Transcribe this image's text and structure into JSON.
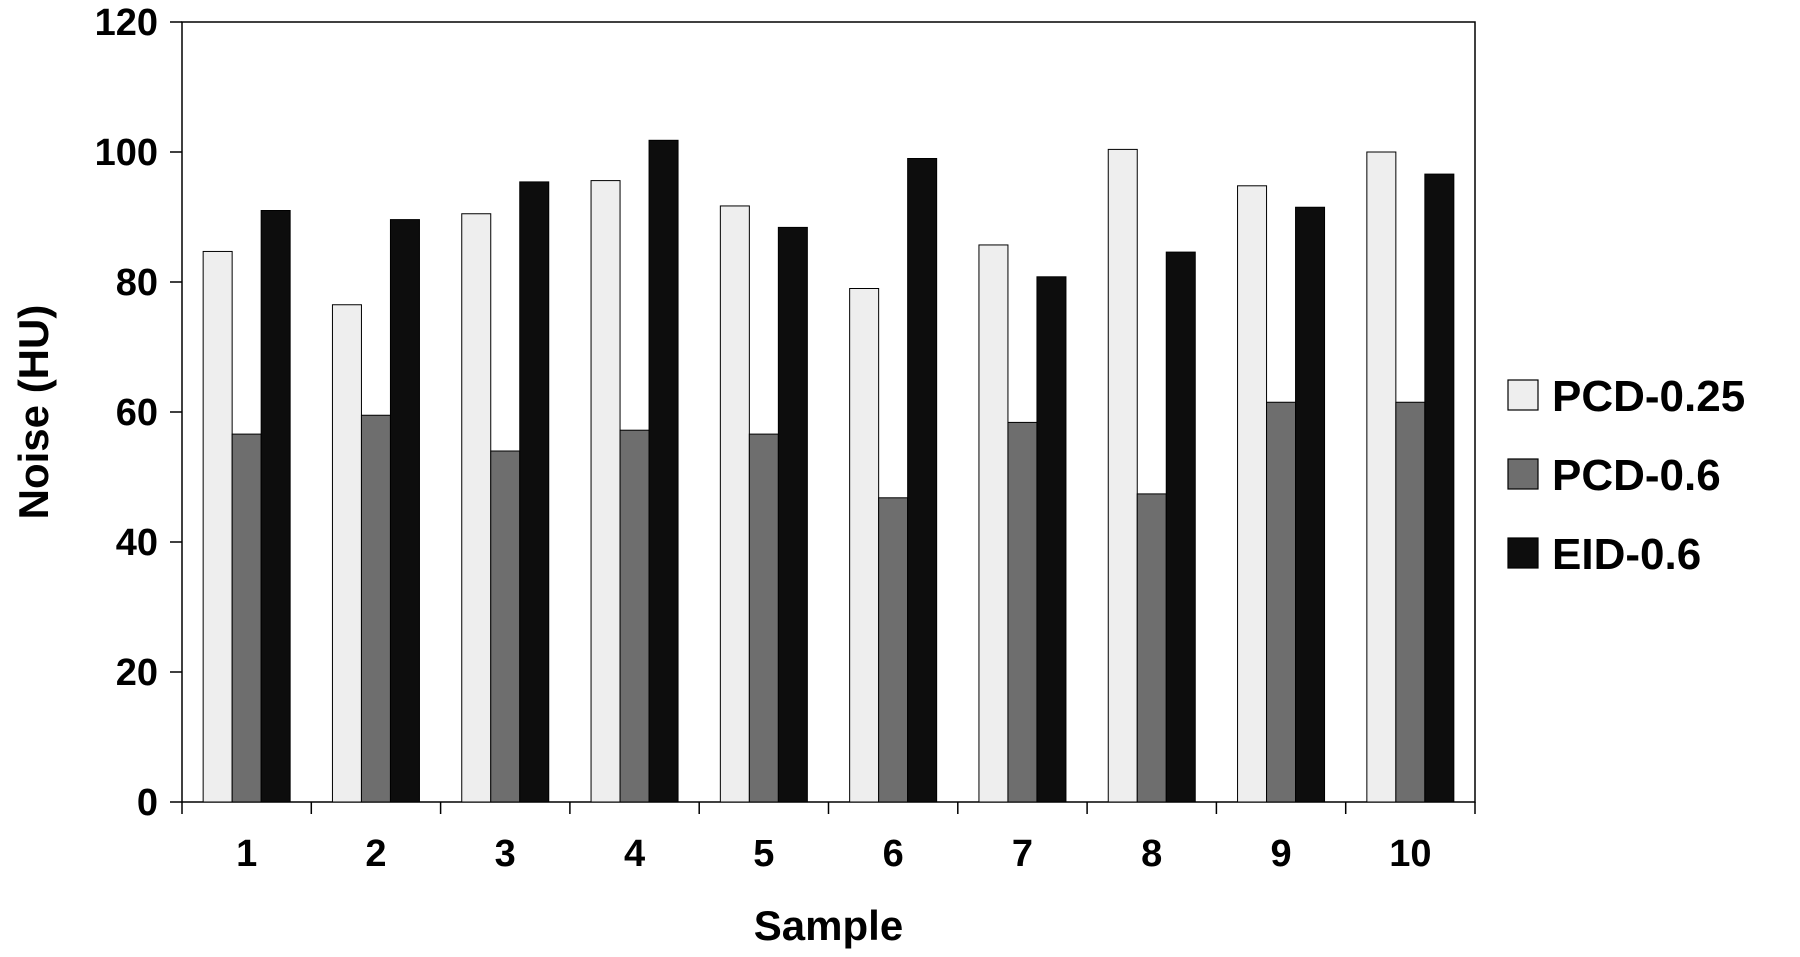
{
  "chart_data": {
    "type": "bar",
    "title": "",
    "xlabel": "Sample",
    "ylabel": "Noise (HU)",
    "categories": [
      "1",
      "2",
      "3",
      "4",
      "5",
      "6",
      "7",
      "8",
      "9",
      "10"
    ],
    "ylim": [
      0,
      120
    ],
    "yticks": [
      "0",
      "20",
      "40",
      "60",
      "80",
      "100",
      "120"
    ],
    "grid": false,
    "legend_position": "right",
    "series": [
      {
        "name": "PCD-0.25",
        "color": "#eeeeee",
        "values": [
          84.7,
          76.5,
          90.5,
          95.6,
          91.7,
          79.0,
          85.7,
          100.4,
          94.8,
          100.0
        ]
      },
      {
        "name": "PCD-0.6",
        "color": "#6e6e6e",
        "values": [
          56.6,
          59.5,
          54.0,
          57.2,
          56.6,
          46.8,
          58.4,
          47.4,
          61.5,
          61.5
        ]
      },
      {
        "name": "EID-0.6",
        "color": "#0d0d0d",
        "values": [
          91.0,
          89.6,
          95.4,
          101.8,
          88.4,
          99.0,
          80.8,
          84.6,
          91.5,
          96.6
        ]
      }
    ]
  }
}
